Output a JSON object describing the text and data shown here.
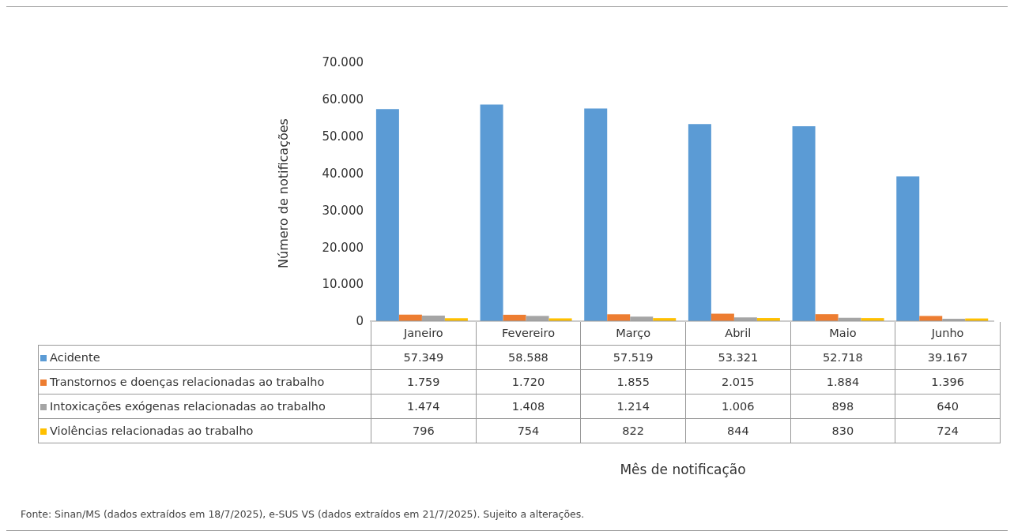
{
  "chart_data": {
    "type": "bar",
    "ylabel": "Número de notificações",
    "categories": [
      "Janeiro",
      "Fevereiro",
      "Março",
      "Abril",
      "Maio",
      "Junho"
    ],
    "series": [
      {
        "name": "Acidente",
        "color": "#5b9bd5",
        "values": [
          57349,
          58588,
          57519,
          53321,
          52718,
          39167
        ],
        "value_labels": [
          "57.349",
          "58.588",
          "57.519",
          "53.321",
          "52.718",
          "39.167"
        ]
      },
      {
        "name": "Transtornos e doenças relacionadas ao trabalho",
        "color": "#ed7d31",
        "values": [
          1759,
          1720,
          1855,
          2015,
          1884,
          1396
        ],
        "value_labels": [
          "1.759",
          "1.720",
          "1.855",
          "2.015",
          "1.884",
          "1.396"
        ]
      },
      {
        "name": "Intoxicações exógenas relacionadas ao trabalho",
        "color": "#a5a5a5",
        "values": [
          1474,
          1408,
          1214,
          1006,
          898,
          640
        ],
        "value_labels": [
          "1.474",
          "1.408",
          "1.214",
          "1.006",
          "898",
          "640"
        ]
      },
      {
        "name": "Violências relacionadas ao trabalho",
        "color": "#ffc000",
        "values": [
          796,
          754,
          822,
          844,
          830,
          724
        ],
        "value_labels": [
          "796",
          "754",
          "822",
          "844",
          "830",
          "724"
        ]
      }
    ],
    "ylim": [
      0,
      70000
    ],
    "yticks": [
      0,
      {
        "value": 10000,
        "label": "10.000"
      },
      {
        "value": 20000,
        "label": "20.000"
      },
      {
        "value": 30000,
        "label": "30.000"
      },
      {
        "value": 40000,
        "label": "40.000"
      },
      {
        "value": 50000,
        "label": "50.000"
      },
      {
        "value": 60000,
        "label": "60.000"
      },
      {
        "value": 70000,
        "label": "70.000"
      }
    ],
    "legend": "bottom",
    "annotations": [
      "Mês de notificação",
      "Fonte: Sinan/MS (dados extraídos em 18/7/2025), e-SUS VS (dados extraídos em 21/7/2025). Sujeito a alterações."
    ]
  }
}
